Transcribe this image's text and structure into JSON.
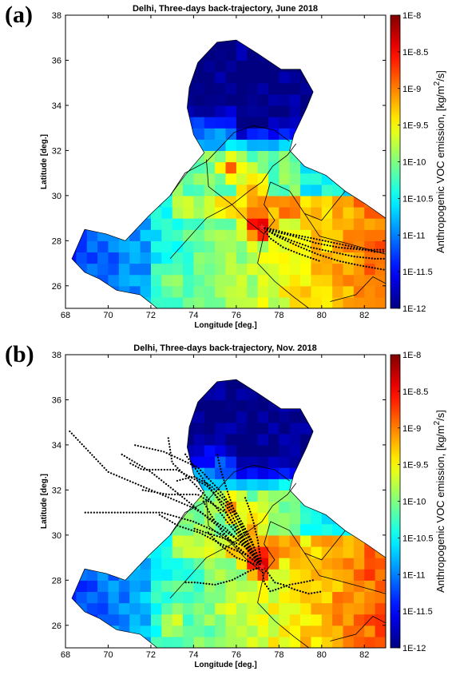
{
  "colorbar": {
    "label": "Anthropogenic VOC emission, [kg/m",
    "label_sup": "2",
    "label_end": "/s]",
    "tick_labels": [
      "1E-8",
      "1E-8.5",
      "1E-9",
      "1E-9.5",
      "1E-10",
      "1E-10.5",
      "1E-11",
      "1E-11.5",
      "1E-12"
    ],
    "colormap": "jet",
    "range_log10": [
      -12,
      -8
    ]
  },
  "chart_data": [
    {
      "type": "heatmap",
      "panel_label": "(a)",
      "title": "Delhi, Three-days back-trajectory, June 2018",
      "xlabel": "Longitude [deg.]",
      "ylabel": "Latitude [deg.]",
      "xlim": [
        68,
        83
      ],
      "ylim": [
        25,
        38
      ],
      "xticks": [
        68,
        70,
        72,
        74,
        76,
        78,
        80,
        82
      ],
      "yticks": [
        26,
        28,
        30,
        32,
        34,
        36,
        38
      ],
      "grid": false,
      "origin": {
        "name": "Delhi",
        "lon": 77.2,
        "lat": 28.6
      },
      "trajectory_color": "#000000",
      "trajectories": [
        [
          [
            77.2,
            28.6
          ],
          [
            77.8,
            28.3
          ],
          [
            78.6,
            28.0
          ],
          [
            79.5,
            27.7
          ],
          [
            80.5,
            27.5
          ],
          [
            81.5,
            27.3
          ],
          [
            82.5,
            27.2
          ],
          [
            83.0,
            27.2
          ]
        ],
        [
          [
            77.2,
            28.6
          ],
          [
            77.7,
            28.5
          ],
          [
            78.5,
            28.3
          ],
          [
            79.6,
            28.1
          ],
          [
            80.6,
            27.9
          ],
          [
            81.6,
            27.7
          ],
          [
            82.5,
            27.5
          ],
          [
            83.0,
            27.5
          ]
        ],
        [
          [
            77.2,
            28.6
          ],
          [
            77.9,
            28.2
          ],
          [
            78.8,
            27.8
          ],
          [
            79.8,
            27.4
          ],
          [
            80.8,
            27.1
          ],
          [
            81.8,
            26.9
          ],
          [
            83.0,
            26.7
          ]
        ],
        [
          [
            77.2,
            28.6
          ],
          [
            77.8,
            28.4
          ],
          [
            78.7,
            28.2
          ],
          [
            79.7,
            27.9
          ],
          [
            80.8,
            27.7
          ],
          [
            81.9,
            27.6
          ],
          [
            83.0,
            27.6
          ]
        ],
        [
          [
            77.2,
            28.6
          ],
          [
            77.6,
            28.1
          ],
          [
            78.2,
            27.7
          ],
          [
            79.0,
            27.4
          ],
          [
            79.9,
            27.1
          ]
        ]
      ]
    },
    {
      "type": "heatmap",
      "panel_label": "(b)",
      "title": "Delhi, Three-days back-trajectory, Nov. 2018",
      "xlabel": "Longitude [deg.]",
      "ylabel": "Latitude [deg.]",
      "xlim": [
        68,
        83
      ],
      "ylim": [
        25,
        38
      ],
      "xticks": [
        68,
        70,
        72,
        74,
        76,
        78,
        80,
        82
      ],
      "yticks": [
        26,
        28,
        30,
        32,
        34,
        36,
        38
      ],
      "grid": false,
      "origin": {
        "name": "Delhi",
        "lon": 77.2,
        "lat": 28.6
      },
      "trajectory_color": "#000000",
      "trajectories": [
        [
          [
            77.2,
            28.6
          ],
          [
            76.5,
            29.4
          ],
          [
            75.5,
            30.3
          ],
          [
            74.0,
            31.2
          ],
          [
            72.0,
            32.0
          ],
          [
            70.0,
            32.8
          ],
          [
            68.2,
            34.6
          ]
        ],
        [
          [
            77.2,
            28.6
          ],
          [
            76.6,
            29.3
          ],
          [
            75.9,
            30.2
          ],
          [
            75.0,
            31.3
          ],
          [
            74.0,
            32.3
          ],
          [
            73.0,
            33.2
          ],
          [
            72.8,
            34.4
          ]
        ],
        [
          [
            77.2,
            28.6
          ],
          [
            76.4,
            29.2
          ],
          [
            75.4,
            30.0
          ],
          [
            74.0,
            30.6
          ],
          [
            72.5,
            31.0
          ],
          [
            70.0,
            31.0
          ],
          [
            68.8,
            31.0
          ]
        ],
        [
          [
            77.2,
            28.6
          ],
          [
            76.5,
            29.6
          ],
          [
            75.8,
            30.6
          ],
          [
            75.0,
            31.8
          ],
          [
            74.2,
            32.8
          ],
          [
            73.6,
            33.6
          ]
        ],
        [
          [
            77.2,
            28.6
          ],
          [
            76.8,
            29.5
          ],
          [
            76.2,
            30.5
          ],
          [
            75.5,
            31.5
          ],
          [
            74.8,
            32.2
          ],
          [
            74.0,
            32.6
          ],
          [
            73.2,
            32.4
          ]
        ],
        [
          [
            77.2,
            28.6
          ],
          [
            76.7,
            29.8
          ],
          [
            76.0,
            31.0
          ],
          [
            75.2,
            32.0
          ],
          [
            74.2,
            33.0
          ],
          [
            72.6,
            33.7
          ],
          [
            71.2,
            34.0
          ]
        ],
        [
          [
            77.2,
            28.6
          ],
          [
            76.2,
            29.7
          ],
          [
            75.0,
            30.5
          ],
          [
            73.6,
            31.6
          ],
          [
            72.0,
            32.8
          ],
          [
            70.6,
            33.6
          ]
        ],
        [
          [
            77.2,
            28.6
          ],
          [
            76.6,
            29.6
          ],
          [
            76.0,
            30.8
          ],
          [
            75.6,
            31.9
          ],
          [
            75.3,
            32.8
          ],
          [
            75.1,
            33.6
          ]
        ],
        [
          [
            77.2,
            28.6
          ],
          [
            76.4,
            29.8
          ],
          [
            75.6,
            31.2
          ],
          [
            74.6,
            32.2
          ],
          [
            73.2,
            32.9
          ],
          [
            71.6,
            32.9
          ],
          [
            71.0,
            33.2
          ]
        ],
        [
          [
            77.2,
            28.6
          ],
          [
            76.5,
            29.1
          ],
          [
            75.3,
            29.6
          ],
          [
            74.3,
            30.1
          ],
          [
            73.3,
            30.4
          ],
          [
            72.4,
            30.9
          ]
        ],
        [
          [
            77.2,
            28.6
          ],
          [
            76.3,
            29.8
          ],
          [
            75.5,
            31.0
          ],
          [
            74.2,
            31.8
          ],
          [
            72.8,
            31.8
          ],
          [
            71.6,
            32.0
          ]
        ],
        [
          [
            77.2,
            28.6
          ],
          [
            77.0,
            29.8
          ],
          [
            76.8,
            30.6
          ],
          [
            76.6,
            31.2
          ],
          [
            76.4,
            31.7
          ]
        ],
        [
          [
            77.2,
            28.6
          ],
          [
            76.1,
            29.4
          ],
          [
            75.3,
            30.2
          ],
          [
            74.8,
            30.9
          ],
          [
            74.4,
            31.6
          ]
        ],
        [
          [
            77.2,
            28.6
          ],
          [
            76.4,
            29.5
          ],
          [
            75.3,
            29.9
          ],
          [
            74.6,
            30.1
          ],
          [
            74.0,
            30.3
          ]
        ],
        [
          [
            77.2,
            28.6
          ],
          [
            76.6,
            28.4
          ],
          [
            75.8,
            28.0
          ],
          [
            75.0,
            27.8
          ],
          [
            74.1,
            27.9
          ],
          [
            73.6,
            27.9
          ]
        ],
        [
          [
            77.2,
            28.6
          ],
          [
            77.3,
            27.9
          ],
          [
            77.6,
            27.5
          ],
          [
            77.9,
            27.6
          ],
          [
            78.5,
            27.8
          ],
          [
            79.1,
            27.9
          ],
          [
            79.6,
            28.0
          ]
        ],
        [
          [
            77.2,
            28.6
          ],
          [
            77.5,
            28.3
          ],
          [
            77.8,
            27.9
          ],
          [
            78.2,
            27.8
          ],
          [
            78.7,
            27.6
          ],
          [
            79.4,
            27.4
          ],
          [
            80.0,
            27.5
          ]
        ],
        [
          [
            77.2,
            28.6
          ],
          [
            76.0,
            29.0
          ],
          [
            75.2,
            29.6
          ],
          [
            74.6,
            30.2
          ]
        ]
      ]
    }
  ]
}
